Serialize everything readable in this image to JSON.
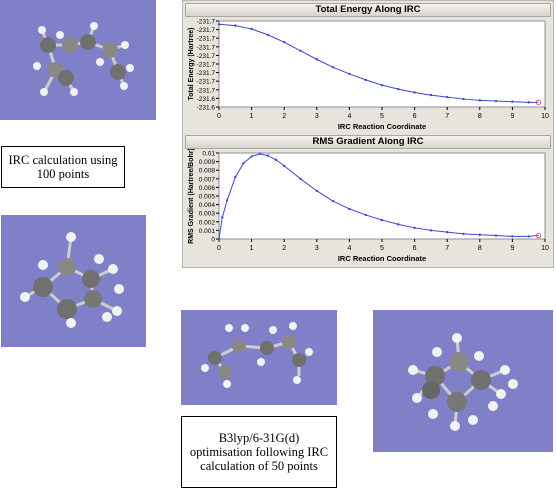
{
  "captions": {
    "irc100": "IRC calculation using 100 points",
    "b3lyp": "B3lyp/6-31G(d) optimisation following IRC calculation of 50 points"
  },
  "colors": {
    "molecule_bg": "#8080c8",
    "series": "#3c48d0",
    "endpoint": "#e06060"
  },
  "chart_data": [
    {
      "type": "line",
      "title": "Total Energy Along IRC",
      "xlabel": "IRC Reaction Coordinate",
      "ylabel": "Total Energy (Hartree)",
      "xlim": [
        0,
        10
      ],
      "x_ticks": [
        "0",
        "1",
        "2",
        "3",
        "4",
        "5",
        "6",
        "7",
        "8",
        "9",
        "10"
      ],
      "y_ticks": [
        "-231.6",
        "-231.6",
        "-231.7",
        "-231.7",
        "-231.7",
        "-231.7",
        "-231.7",
        "-231.7",
        "-231.7",
        "-231.7",
        "-231.7"
      ],
      "ylim": [
        -231.73,
        -231.6
      ],
      "series": [
        {
          "x": [
            0,
            0.5,
            1,
            1.5,
            2,
            2.5,
            3,
            3.5,
            4,
            4.5,
            5,
            5.5,
            6,
            6.5,
            7,
            7.5,
            8,
            8.5,
            9,
            9.5,
            9.8
          ],
          "y": [
            -231.605,
            -231.607,
            -231.612,
            -231.621,
            -231.632,
            -231.645,
            -231.658,
            -231.67,
            -231.68,
            -231.689,
            -231.697,
            -231.703,
            -231.708,
            -231.712,
            -231.715,
            -231.718,
            -231.72,
            -231.721,
            -231.722,
            -231.723,
            -231.723
          ]
        }
      ]
    },
    {
      "type": "line",
      "title": "RMS Gradient Along IRC",
      "xlabel": "IRC Reaction Coordinate",
      "ylabel": "RMS Gradient (Hartree/Bohr)",
      "xlim": [
        0,
        10
      ],
      "x_ticks": [
        "0",
        "1",
        "2",
        "3",
        "4",
        "5",
        "6",
        "7",
        "8",
        "9",
        "10"
      ],
      "y_ticks": [
        "0",
        "0.001",
        "0.002",
        "0.003",
        "0.004",
        "0.005",
        "0.006",
        "0.007",
        "0.008",
        "0.009",
        "0.01"
      ],
      "ylim": [
        0,
        0.01
      ],
      "series": [
        {
          "x": [
            0,
            0.1,
            0.25,
            0.5,
            0.75,
            1,
            1.25,
            1.5,
            1.75,
            2,
            2.5,
            3,
            3.5,
            4,
            4.5,
            5,
            5.5,
            6,
            6.5,
            7,
            7.5,
            8,
            8.5,
            9,
            9.5,
            9.8
          ],
          "y": [
            0,
            0.0025,
            0.0045,
            0.0072,
            0.0088,
            0.0096,
            0.0099,
            0.0097,
            0.0092,
            0.0085,
            0.007,
            0.0056,
            0.0044,
            0.0035,
            0.0028,
            0.0022,
            0.0017,
            0.0013,
            0.001,
            0.0008,
            0.0006,
            0.0005,
            0.0004,
            0.0003,
            0.0003,
            0.0004
          ]
        }
      ]
    }
  ]
}
